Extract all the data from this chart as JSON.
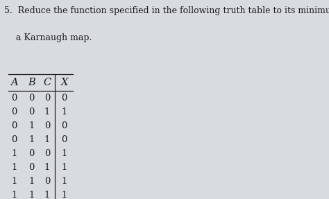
{
  "title_number": "5.",
  "title_text": "Reduce the function specified in the following truth table to its minimum SOP form by using",
  "title_text2": "a Karnaugh map.",
  "headers": [
    "A",
    "B",
    "C",
    "X"
  ],
  "rows": [
    [
      0,
      0,
      0,
      0
    ],
    [
      0,
      0,
      1,
      1
    ],
    [
      0,
      1,
      0,
      0
    ],
    [
      0,
      1,
      1,
      0
    ],
    [
      1,
      0,
      0,
      1
    ],
    [
      1,
      0,
      1,
      1
    ],
    [
      1,
      1,
      0,
      1
    ],
    [
      1,
      1,
      1,
      1
    ]
  ],
  "bg_color": "#d8dce0",
  "text_color": "#1a1a1a",
  "title_fontsize": 9.0,
  "table_fontsize": 9.5,
  "header_fontsize": 10.5
}
